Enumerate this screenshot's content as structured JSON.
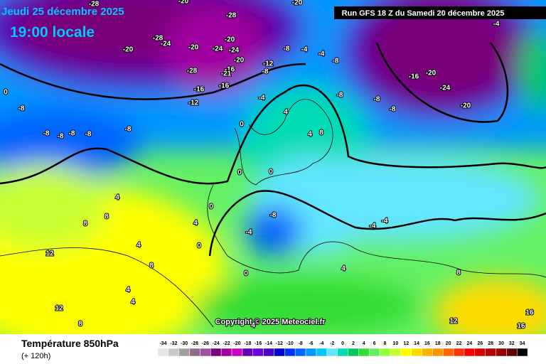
{
  "header": {
    "date": "Jeudi 25 décembre 2025",
    "time": "19:00 locale",
    "run": "Run GFS 18 Z du Samedi 20 décembre 2025"
  },
  "copyright": "Copyright © 2025 Meteociel.fr",
  "footer": {
    "title": "Température 850hPa",
    "lead": "(+ 120h)"
  },
  "scale": {
    "values": [
      -34,
      -32,
      -30,
      -28,
      -26,
      -24,
      -22,
      -20,
      -18,
      -16,
      -14,
      -12,
      -10,
      -8,
      -6,
      -4,
      -2,
      0,
      2,
      4,
      6,
      8,
      10,
      12,
      14,
      16,
      18,
      20,
      22,
      24,
      26,
      28,
      30,
      32,
      34
    ],
    "colors": [
      "#e6e6e6",
      "#c8c8c8",
      "#a0a0a0",
      "#8c6e8c",
      "#a050a0",
      "#780078",
      "#a000a0",
      "#c800c8",
      "#6400b4",
      "#6e00dc",
      "#4600c8",
      "#0000c8",
      "#0032ff",
      "#0064ff",
      "#0096ff",
      "#00c8ff",
      "#64e6ff",
      "#00dcb4",
      "#00c864",
      "#32dc32",
      "#64f064",
      "#96ff32",
      "#c8ff32",
      "#ffff00",
      "#ffdc00",
      "#ffb400",
      "#ff9600",
      "#ff6400",
      "#ff3200",
      "#ff0000",
      "#dc0000",
      "#b40000",
      "#960000",
      "#640000",
      "#000000"
    ]
  },
  "map_labels": [
    -28,
    -28,
    -28,
    -24,
    -20,
    -20,
    -20,
    -24,
    -24,
    -20,
    -28,
    -16,
    -21,
    -12,
    -8,
    -16,
    -16,
    -12,
    -8,
    -4,
    -4,
    -8,
    -8,
    -8,
    -8,
    -8,
    -8,
    -8,
    -4,
    -8,
    -8,
    -8,
    -16,
    -20,
    -24,
    -20,
    4,
    0,
    4,
    8,
    0,
    0,
    4,
    8,
    8,
    0,
    -8,
    -4,
    -4,
    -4,
    4,
    0,
    0,
    4,
    4,
    8,
    4,
    12,
    12,
    4,
    8,
    12,
    16,
    16,
    8,
    4,
    -4,
    -20,
    -20,
    0
  ]
}
